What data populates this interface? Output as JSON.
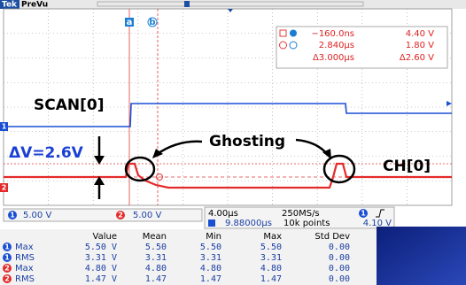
{
  "header": {
    "brand": "Tek",
    "mode": "PreVu"
  },
  "cursors": {
    "a": "a",
    "b": "b"
  },
  "cursor_readout": {
    "rows": [
      [
        "−160.0ns",
        "4.40 V"
      ],
      [
        "2.840µs",
        "1.80 V"
      ],
      [
        "Δ3.000µs",
        "Δ2.60 V"
      ]
    ]
  },
  "channel_markers": [
    "1",
    "2"
  ],
  "annotations": {
    "scan": "SCAN[0]",
    "delta_v": "ΔV=2.6V",
    "ghosting": "Ghosting",
    "ch": "CH[0]"
  },
  "status": {
    "ch1_scale": "5.00 V",
    "ch2_scale": "5.00 V",
    "time_div": "4.00µs",
    "sample_rate": "250MS/s",
    "delay": "9.88000µs",
    "record": "10k points",
    "trigger_level": "4.10 V"
  },
  "table": {
    "columns": [
      "Value",
      "Mean",
      "Min",
      "Max",
      "Std Dev"
    ],
    "rows": [
      {
        "channel": "1",
        "stat": "Max",
        "cells": [
          "5.50 V",
          "5.50",
          "5.50",
          "5.50",
          "0.00"
        ]
      },
      {
        "channel": "1",
        "stat": "RMS",
        "cells": [
          "3.31 V",
          "3.31",
          "3.31",
          "3.31",
          "0.00"
        ]
      },
      {
        "channel": "2",
        "stat": "Max",
        "cells": [
          "4.80 V",
          "4.80",
          "4.80",
          "4.80",
          "0.00"
        ]
      },
      {
        "channel": "2",
        "stat": "RMS",
        "cells": [
          "1.47 V",
          "1.47",
          "1.47",
          "1.47",
          "0.00"
        ]
      }
    ]
  }
}
